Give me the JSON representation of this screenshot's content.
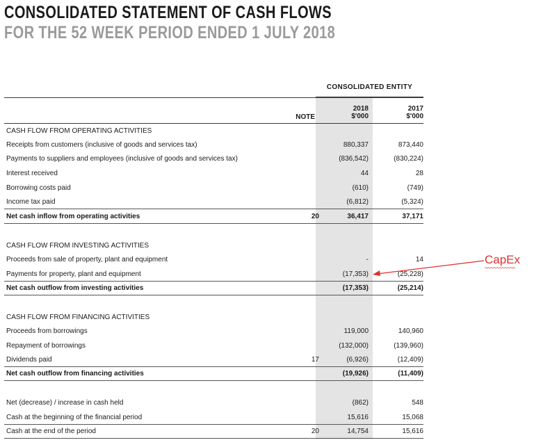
{
  "title": "CONSOLIDATED STATEMENT OF CASH FLOWS",
  "subtitle": "FOR THE 52 WEEK PERIOD ENDED 1 JULY 2018",
  "entity_header": "CONSOLIDATED ENTITY",
  "columns": {
    "note": "NOTE",
    "y2018": "2018",
    "y2018_unit": "$'000",
    "y2017": "2017",
    "y2017_unit": "$'000"
  },
  "annotation": {
    "label": "CapEx",
    "color": "#e03030"
  },
  "rows": [
    {
      "label": "CASH FLOW FROM OPERATING ACTIVITIES",
      "note": "",
      "v2018": "",
      "v2017": ""
    },
    {
      "label": "Receipts from customers (inclusive of goods and services tax)",
      "note": "",
      "v2018": "880,337",
      "v2017": "873,440"
    },
    {
      "label": "Payments to suppliers and employees (inclusive of goods and services tax)",
      "note": "",
      "v2018": "(836,542)",
      "v2017": "(830,224)"
    },
    {
      "label": "Interest received",
      "note": "",
      "v2018": "44",
      "v2017": "28"
    },
    {
      "label": "Borrowing costs paid",
      "note": "",
      "v2018": "(610)",
      "v2017": "(749)"
    },
    {
      "label": "Income tax paid",
      "note": "",
      "v2018": "(6,812)",
      "v2017": "(5,324)"
    },
    {
      "label": "Net cash inflow from operating activities",
      "note": "20",
      "v2018": "36,417",
      "v2017": "37,171"
    },
    {
      "label": "CASH FLOW FROM INVESTING ACTIVITIES",
      "note": "",
      "v2018": "",
      "v2017": ""
    },
    {
      "label": "Proceeds from sale of property, plant and equipment",
      "note": "",
      "v2018": "-",
      "v2017": "14"
    },
    {
      "label": "Payments for property, plant and equipment",
      "note": "",
      "v2018": "(17,353)",
      "v2017": "(25,228)"
    },
    {
      "label": "Net cash outflow from investing activities",
      "note": "",
      "v2018": "(17,353)",
      "v2017": "(25,214)"
    },
    {
      "label": "CASH FLOW FROM FINANCING ACTIVITIES",
      "note": "",
      "v2018": "",
      "v2017": ""
    },
    {
      "label": "Proceeds from borrowings",
      "note": "",
      "v2018": "119,000",
      "v2017": "140,960"
    },
    {
      "label": "Repayment of borrowings",
      "note": "",
      "v2018": "(132,000)",
      "v2017": "(139,960)"
    },
    {
      "label": "Dividends paid",
      "note": "17",
      "v2018": "(6,926)",
      "v2017": "(12,409)"
    },
    {
      "label": "Net cash outflow from financing activities",
      "note": "",
      "v2018": "(19,926)",
      "v2017": "(11,409)"
    },
    {
      "label": "Net (decrease) / increase in cash held",
      "note": "",
      "v2018": "(862)",
      "v2017": "548"
    },
    {
      "label": "Cash at the beginning of the financial period",
      "note": "",
      "v2018": "15,616",
      "v2017": "15,068"
    },
    {
      "label": "Cash at the end of the period",
      "note": "20",
      "v2018": "14,754",
      "v2017": "15,616"
    }
  ]
}
